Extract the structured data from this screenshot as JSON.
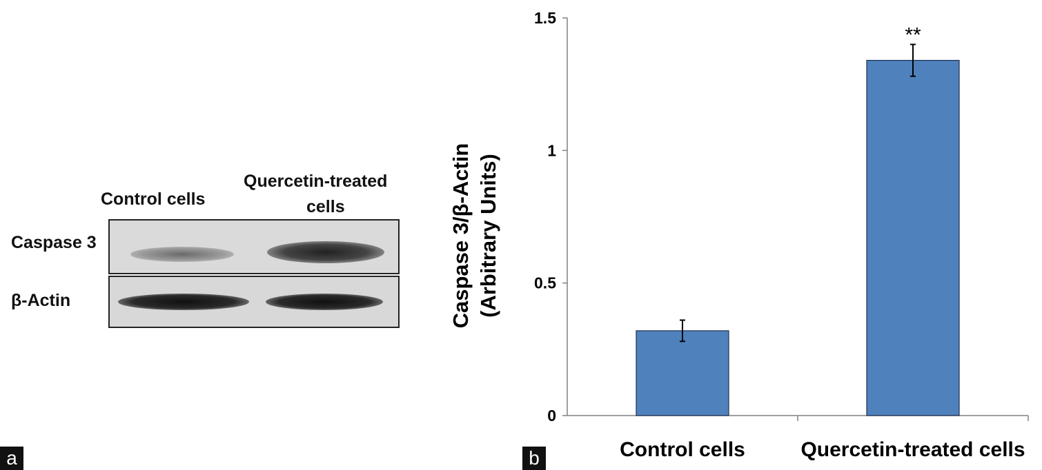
{
  "panel_a": {
    "label": "a",
    "lanes": [
      "Control cells",
      "Quercetin-treated\ncells"
    ],
    "lane_1": "Control cells",
    "lane_2_line1": "Quercetin-treated",
    "lane_2_line2": "cells",
    "rows": [
      "Caspase 3",
      "β-Actin"
    ]
  },
  "panel_b": {
    "label": "b"
  },
  "colors": {
    "bar": "#4f81bd",
    "bar_border": "#1f2f4f",
    "axis": "#808080"
  },
  "chart_data": {
    "type": "bar",
    "categories": [
      "Control cells",
      "Quercetin-treated cells"
    ],
    "values": [
      0.32,
      1.34
    ],
    "errors": [
      0.04,
      0.06
    ],
    "significance": [
      "",
      "**"
    ],
    "ylabel_line1": "Caspase 3/β-Actin",
    "ylabel_line2": "(Arbitrary Units)",
    "ylim": [
      0,
      1.5
    ],
    "yticks": [
      0,
      0.5,
      1,
      1.5
    ],
    "ytick_labels": [
      "0",
      "0.5",
      "1",
      "1.5"
    ],
    "grid": false,
    "legend": "none"
  }
}
